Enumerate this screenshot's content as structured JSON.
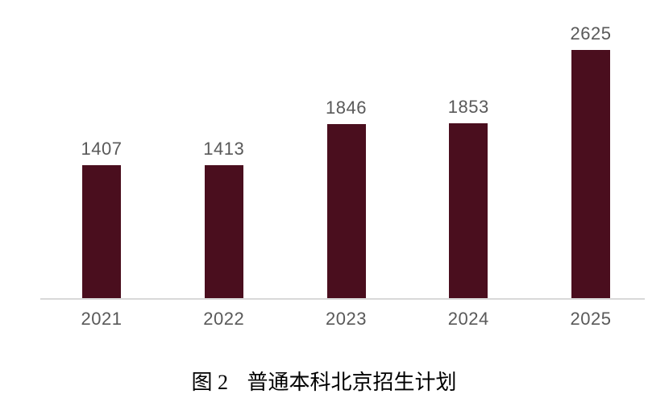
{
  "chart_data": {
    "type": "bar",
    "categories": [
      "2021",
      "2022",
      "2023",
      "2024",
      "2025"
    ],
    "values": [
      1407,
      1413,
      1846,
      1853,
      2625
    ],
    "title": "图 2  普通本科北京招生计划",
    "xlabel": "",
    "ylabel": "",
    "ylim": [
      0,
      2625
    ],
    "grid": false,
    "legend": false,
    "data_labels_shown": true,
    "bar_color": "#4a0e1e",
    "label_color": "#595959",
    "axis_line_color": "#d9d9d9",
    "caption_color": "#000000"
  },
  "caption": {
    "number": "图 2",
    "title": "普通本科北京招生计划"
  }
}
